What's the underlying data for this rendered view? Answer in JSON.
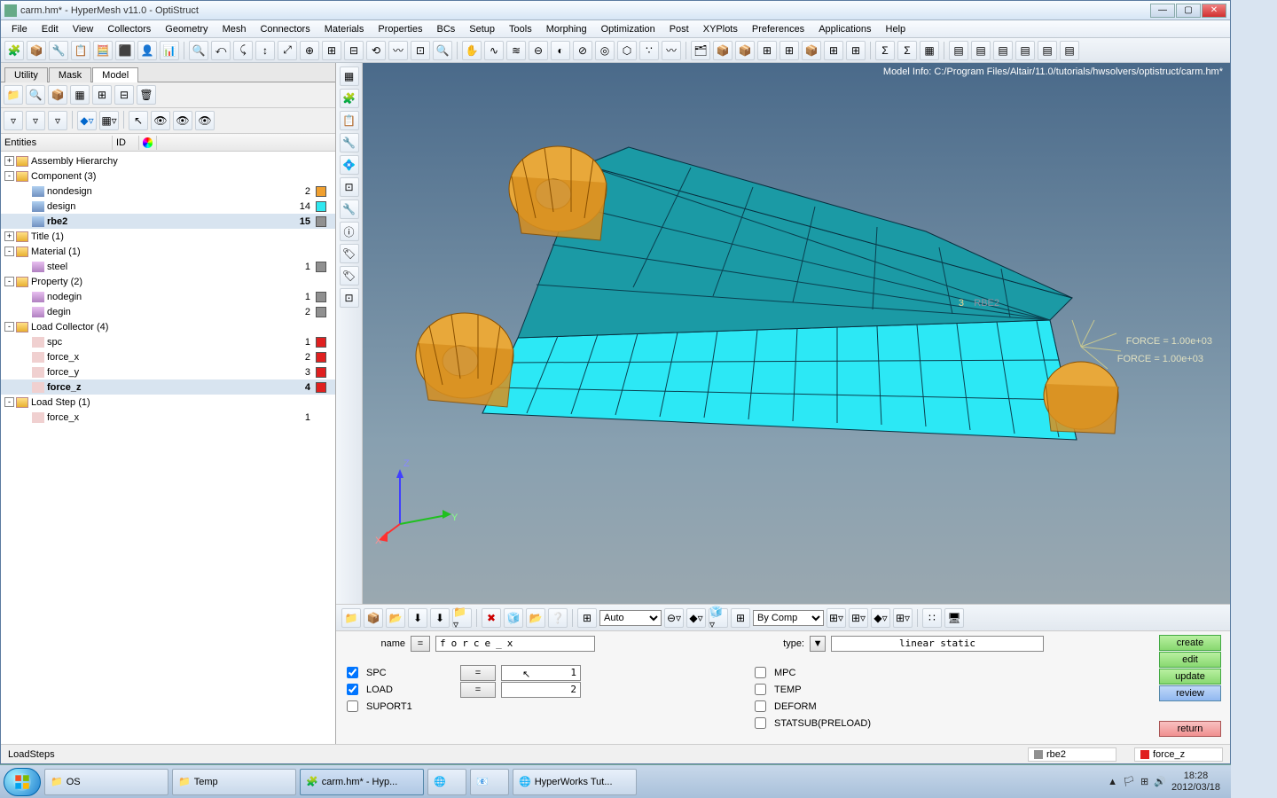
{
  "window": {
    "title": "carm.hm* - HyperMesh v11.0 - OptiStruct"
  },
  "menubar": [
    "File",
    "Edit",
    "View",
    "Collectors",
    "Geometry",
    "Mesh",
    "Connectors",
    "Materials",
    "Properties",
    "BCs",
    "Setup",
    "Tools",
    "Morphing",
    "Optimization",
    "Post",
    "XYPlots",
    "Preferences",
    "Applications",
    "Help"
  ],
  "lefttabs": {
    "items": [
      "Utility",
      "Mask",
      "Model"
    ],
    "active": 2
  },
  "treeheader": {
    "c1": "Entities",
    "c2": "ID",
    "c3": ""
  },
  "tree": [
    {
      "d": 0,
      "exp": "+",
      "icon": "folder",
      "label": "Assembly Hierarchy",
      "id": "",
      "color": null
    },
    {
      "d": 0,
      "exp": "-",
      "icon": "folder",
      "label": "Component (3)",
      "id": "",
      "color": null
    },
    {
      "d": 1,
      "exp": "",
      "icon": "comp",
      "label": "nondesign",
      "id": "2",
      "color": "#f0a030"
    },
    {
      "d": 1,
      "exp": "",
      "icon": "comp",
      "label": "design",
      "id": "14",
      "color": "#30e8f0"
    },
    {
      "d": 1,
      "exp": "",
      "icon": "comp",
      "label": "rbe2",
      "id": "15",
      "color": "#909090",
      "sel": true
    },
    {
      "d": 0,
      "exp": "+",
      "icon": "folder",
      "label": "Title (1)",
      "id": "",
      "color": null
    },
    {
      "d": 0,
      "exp": "-",
      "icon": "folder",
      "label": "Material (1)",
      "id": "",
      "color": null
    },
    {
      "d": 1,
      "exp": "",
      "icon": "mat",
      "label": "steel",
      "id": "1",
      "color": "#909090"
    },
    {
      "d": 0,
      "exp": "-",
      "icon": "folder",
      "label": "Property (2)",
      "id": "",
      "color": null
    },
    {
      "d": 1,
      "exp": "",
      "icon": "mat",
      "label": "nodegin",
      "id": "1",
      "color": "#909090"
    },
    {
      "d": 1,
      "exp": "",
      "icon": "mat",
      "label": "degin",
      "id": "2",
      "color": "#909090"
    },
    {
      "d": 0,
      "exp": "-",
      "icon": "folder",
      "label": "Load Collector (4)",
      "id": "",
      "color": null
    },
    {
      "d": 1,
      "exp": "",
      "icon": "lc",
      "label": "spc",
      "id": "1",
      "color": "#e02020"
    },
    {
      "d": 1,
      "exp": "",
      "icon": "lc",
      "label": "force_x",
      "id": "2",
      "color": "#e02020"
    },
    {
      "d": 1,
      "exp": "",
      "icon": "lc",
      "label": "force_y",
      "id": "3",
      "color": "#e02020"
    },
    {
      "d": 1,
      "exp": "",
      "icon": "lc",
      "label": "force_z",
      "id": "4",
      "color": "#e02020",
      "sel": true
    },
    {
      "d": 0,
      "exp": "-",
      "icon": "folder",
      "label": "Load Step (1)",
      "id": "",
      "color": null
    },
    {
      "d": 1,
      "exp": "",
      "icon": "lc",
      "label": "force_x",
      "id": "1",
      "color": null
    }
  ],
  "viewport": {
    "modelinfo": "Model Info: C:/Program Files/Altair/11.0/tutorials/hwsolvers/optistruct/carm.hm*",
    "forcelines": [
      "FORCE = 1.00e+03",
      "FORCE = 1.00e+03"
    ],
    "labelR": "RBE2",
    "labelRnum": "3",
    "axes": {
      "x": "X",
      "y": "Y",
      "z": "Z"
    },
    "colors": {
      "design": "#2ce8f5",
      "nondesign": "#e8a83a",
      "edges": "#083040",
      "top": "#1d8d99"
    }
  },
  "bottombar": {
    "auto": "Auto",
    "bycomp": "By Comp"
  },
  "panel": {
    "name_label": "name",
    "eq": "=",
    "name_value": "force_x",
    "type_label": "type:",
    "type_value": "linear static",
    "left": [
      {
        "checked": true,
        "label": "SPC",
        "eq": "=",
        "val": "1"
      },
      {
        "checked": true,
        "label": "LOAD",
        "eq": "=",
        "val": "2"
      },
      {
        "checked": false,
        "label": "SUPORT1"
      }
    ],
    "right": [
      "MPC",
      "TEMP",
      "DEFORM",
      "STATSUB(PRELOAD)"
    ],
    "buttons": {
      "create": "create",
      "edit": "edit",
      "update": "update",
      "review": "review",
      "return": "return"
    }
  },
  "statusbar": {
    "left": "LoadSteps",
    "rbe2": "rbe2",
    "forcez": "force_z"
  },
  "taskbar": {
    "items": [
      {
        "icon": "folder",
        "label": "OS"
      },
      {
        "icon": "folder",
        "label": "Temp"
      },
      {
        "icon": "app",
        "label": "carm.hm* - Hyp...",
        "active": true
      },
      {
        "icon": "app2",
        "label": ""
      },
      {
        "icon": "app3",
        "label": ""
      },
      {
        "icon": "ie",
        "label": "HyperWorks Tut..."
      }
    ],
    "time": "18:28",
    "date": "2012/03/18"
  },
  "toolbar_icons": [
    "🧩",
    "📦",
    "🔧",
    "📋",
    "🧮",
    "⬛",
    "👤",
    "📊",
    "🔍",
    "⤺",
    "⤹",
    "↕",
    "⤢",
    "⊕",
    "⊞",
    "⊟",
    "⟲",
    "〰",
    "⊡",
    "🔍",
    "✋",
    "∿",
    "≋",
    "⊖",
    "◐",
    "⊘",
    "◎",
    "⬡",
    "∵",
    "〰",
    "🗂",
    "📦",
    "📦",
    "⊞",
    "⊞",
    "📦",
    "⊞",
    "⊞",
    "Σ",
    "Σ",
    "▦",
    "▤",
    "▤",
    "▤",
    "▤",
    "▤",
    "▤"
  ],
  "vtoolbar_icons": [
    "▦",
    "🧩",
    "📋",
    "🔧",
    "💠",
    "⊡",
    "🔧",
    "ⓘ",
    "🏷",
    "🏷",
    "⊡"
  ]
}
